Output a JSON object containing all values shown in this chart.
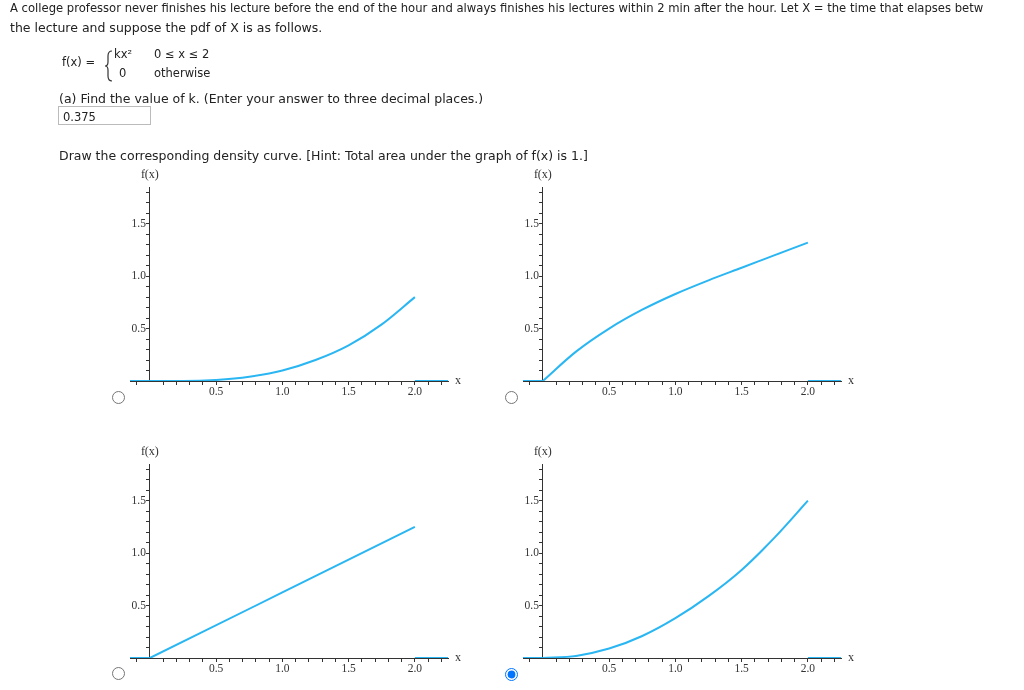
{
  "chart_data": [
    {
      "type": "other",
      "annotations": [
        "A college professor never finishes his lecture before the end of the hour and always finishes his lectures within 2 min after the hour. Let X = the time that elapses betw",
        "the lecture and suppose the pdf of X is as follows.",
        "f(x) =",
        "kx²",
        "0 ≤ x ≤ 2",
        "0",
        "otherwise",
        "(a) Find the value of k. (Enter your answer to three decimal places.)",
        "0.375",
        "Draw the corresponding density curve. [Hint: Total area under the graph of f(x) is 1.]"
      ]
    },
    {
      "type": "line",
      "xlabel": "x",
      "ylabel": "f(x)",
      "marker": "none",
      "xlim": [
        -0.15,
        2.25
      ],
      "ylim": [
        0,
        1.85
      ],
      "xticks": [
        {
          "value": -0.1,
          "label": null
        },
        {
          "value": 0.1,
          "label": null
        },
        {
          "value": 0.2,
          "label": null
        },
        {
          "value": 0.3,
          "label": null
        },
        {
          "value": 0.4,
          "label": null
        },
        {
          "value": 0.5,
          "label": "0.5"
        },
        {
          "value": 0.6,
          "label": null
        },
        {
          "value": 0.7,
          "label": null
        },
        {
          "value": 0.8,
          "label": null
        },
        {
          "value": 0.9,
          "label": null
        },
        {
          "value": 1,
          "label": "1.0"
        },
        {
          "value": 1.1,
          "label": null
        },
        {
          "value": 1.2,
          "label": null
        },
        {
          "value": 1.3,
          "label": null
        },
        {
          "value": 1.4,
          "label": null
        },
        {
          "value": 1.5,
          "label": "1.5"
        },
        {
          "value": 1.6,
          "label": null
        },
        {
          "value": 1.7,
          "label": null
        },
        {
          "value": 1.8,
          "label": null
        },
        {
          "value": 1.9,
          "label": null
        },
        {
          "value": 2,
          "label": "2.0"
        },
        {
          "value": 2.1,
          "label": null
        },
        {
          "value": 2.2,
          "label": null
        }
      ],
      "yticks": [
        {
          "value": 0.1,
          "label": null
        },
        {
          "value": 0.2,
          "label": null
        },
        {
          "value": 0.3,
          "label": null
        },
        {
          "value": 0.4,
          "label": null
        },
        {
          "value": 0.5,
          "label": "0.5"
        },
        {
          "value": 0.6,
          "label": null
        },
        {
          "value": 0.7,
          "label": null
        },
        {
          "value": 0.8,
          "label": null
        },
        {
          "value": 0.9,
          "label": null
        },
        {
          "value": 1,
          "label": "1.0"
        },
        {
          "value": 1.1,
          "label": null
        },
        {
          "value": 1.2,
          "label": null
        },
        {
          "value": 1.3,
          "label": null
        },
        {
          "value": 1.4,
          "label": null
        },
        {
          "value": 1.5,
          "label": "1.5"
        },
        {
          "value": 1.6,
          "label": null
        },
        {
          "value": 1.7,
          "label": null
        },
        {
          "value": 1.8,
          "label": null
        }
      ],
      "series": [
        {
          "color": "#29b6f2",
          "x": [
            0,
            0.25,
            0.5,
            0.75,
            1,
            1.25,
            1.5,
            1.75,
            2
          ],
          "values": [
            0,
            0,
            0.01,
            0.04,
            0.1,
            0.2,
            0.34,
            0.54,
            0.8
          ]
        },
        {
          "color": "#29b6f2",
          "x": [
            -0.15,
            0
          ],
          "values": [
            0,
            0
          ]
        },
        {
          "color": "#29b6f2",
          "x": [
            2,
            2.25
          ],
          "values": [
            0,
            0
          ]
        }
      ]
    },
    {
      "type": "line",
      "xlabel": "x",
      "ylabel": "f(x)",
      "marker": "none",
      "xlim": [
        -0.15,
        2.25
      ],
      "ylim": [
        0,
        1.85
      ],
      "xticks": [
        {
          "value": -0.1,
          "label": null
        },
        {
          "value": 0.1,
          "label": null
        },
        {
          "value": 0.2,
          "label": null
        },
        {
          "value": 0.3,
          "label": null
        },
        {
          "value": 0.4,
          "label": null
        },
        {
          "value": 0.5,
          "label": "0.5"
        },
        {
          "value": 0.6,
          "label": null
        },
        {
          "value": 0.7,
          "label": null
        },
        {
          "value": 0.8,
          "label": null
        },
        {
          "value": 0.9,
          "label": null
        },
        {
          "value": 1,
          "label": "1.0"
        },
        {
          "value": 1.1,
          "label": null
        },
        {
          "value": 1.2,
          "label": null
        },
        {
          "value": 1.3,
          "label": null
        },
        {
          "value": 1.4,
          "label": null
        },
        {
          "value": 1.5,
          "label": "1.5"
        },
        {
          "value": 1.6,
          "label": null
        },
        {
          "value": 1.7,
          "label": null
        },
        {
          "value": 1.8,
          "label": null
        },
        {
          "value": 1.9,
          "label": null
        },
        {
          "value": 2,
          "label": "2.0"
        },
        {
          "value": 2.1,
          "label": null
        },
        {
          "value": 2.2,
          "label": null
        }
      ],
      "yticks": [
        {
          "value": 0.1,
          "label": null
        },
        {
          "value": 0.2,
          "label": null
        },
        {
          "value": 0.3,
          "label": null
        },
        {
          "value": 0.4,
          "label": null
        },
        {
          "value": 0.5,
          "label": "0.5"
        },
        {
          "value": 0.6,
          "label": null
        },
        {
          "value": 0.7,
          "label": null
        },
        {
          "value": 0.8,
          "label": null
        },
        {
          "value": 0.9,
          "label": null
        },
        {
          "value": 1,
          "label": "1.0"
        },
        {
          "value": 1.1,
          "label": null
        },
        {
          "value": 1.2,
          "label": null
        },
        {
          "value": 1.3,
          "label": null
        },
        {
          "value": 1.4,
          "label": null
        },
        {
          "value": 1.5,
          "label": "1.5"
        },
        {
          "value": 1.6,
          "label": null
        },
        {
          "value": 1.7,
          "label": null
        },
        {
          "value": 1.8,
          "label": null
        }
      ],
      "series": [
        {
          "color": "#29b6f2",
          "x": [
            0,
            0.25,
            0.5,
            0.75,
            1,
            1.25,
            1.5,
            1.75,
            2
          ],
          "values": [
            0,
            0.28,
            0.5,
            0.68,
            0.83,
            0.96,
            1.08,
            1.2,
            1.32
          ]
        },
        {
          "color": "#29b6f2",
          "x": [
            -0.15,
            0
          ],
          "values": [
            0,
            0
          ]
        },
        {
          "color": "#29b6f2",
          "x": [
            2,
            2.25
          ],
          "values": [
            0,
            0
          ]
        }
      ]
    },
    {
      "type": "line",
      "xlabel": "x",
      "ylabel": "f(x)",
      "marker": "none",
      "xlim": [
        -0.15,
        2.25
      ],
      "ylim": [
        0,
        1.85
      ],
      "xticks": [
        {
          "value": -0.1,
          "label": null
        },
        {
          "value": 0.1,
          "label": null
        },
        {
          "value": 0.2,
          "label": null
        },
        {
          "value": 0.3,
          "label": null
        },
        {
          "value": 0.4,
          "label": null
        },
        {
          "value": 0.5,
          "label": "0.5"
        },
        {
          "value": 0.6,
          "label": null
        },
        {
          "value": 0.7,
          "label": null
        },
        {
          "value": 0.8,
          "label": null
        },
        {
          "value": 0.9,
          "label": null
        },
        {
          "value": 1,
          "label": "1.0"
        },
        {
          "value": 1.1,
          "label": null
        },
        {
          "value": 1.2,
          "label": null
        },
        {
          "value": 1.3,
          "label": null
        },
        {
          "value": 1.4,
          "label": null
        },
        {
          "value": 1.5,
          "label": "1.5"
        },
        {
          "value": 1.6,
          "label": null
        },
        {
          "value": 1.7,
          "label": null
        },
        {
          "value": 1.8,
          "label": null
        },
        {
          "value": 1.9,
          "label": null
        },
        {
          "value": 2,
          "label": "2.0"
        },
        {
          "value": 2.1,
          "label": null
        },
        {
          "value": 2.2,
          "label": null
        }
      ],
      "yticks": [
        {
          "value": 0.1,
          "label": null
        },
        {
          "value": 0.2,
          "label": null
        },
        {
          "value": 0.3,
          "label": null
        },
        {
          "value": 0.4,
          "label": null
        },
        {
          "value": 0.5,
          "label": "0.5"
        },
        {
          "value": 0.6,
          "label": null
        },
        {
          "value": 0.7,
          "label": null
        },
        {
          "value": 0.8,
          "label": null
        },
        {
          "value": 0.9,
          "label": null
        },
        {
          "value": 1,
          "label": "1.0"
        },
        {
          "value": 1.1,
          "label": null
        },
        {
          "value": 1.2,
          "label": null
        },
        {
          "value": 1.3,
          "label": null
        },
        {
          "value": 1.4,
          "label": null
        },
        {
          "value": 1.5,
          "label": "1.5"
        },
        {
          "value": 1.6,
          "label": null
        },
        {
          "value": 1.7,
          "label": null
        },
        {
          "value": 1.8,
          "label": null
        }
      ],
      "series": [
        {
          "color": "#29b6f2",
          "x": [
            0,
            2
          ],
          "values": [
            0,
            1.25
          ]
        },
        {
          "color": "#29b6f2",
          "x": [
            -0.15,
            0
          ],
          "values": [
            0,
            0
          ]
        },
        {
          "color": "#29b6f2",
          "x": [
            2,
            2.25
          ],
          "values": [
            0,
            0
          ]
        }
      ]
    },
    {
      "type": "line",
      "xlabel": "x",
      "ylabel": "f(x)",
      "marker": "none",
      "xlim": [
        -0.15,
        2.25
      ],
      "ylim": [
        0,
        1.85
      ],
      "xticks": [
        {
          "value": -0.1,
          "label": null
        },
        {
          "value": 0.1,
          "label": null
        },
        {
          "value": 0.2,
          "label": null
        },
        {
          "value": 0.3,
          "label": null
        },
        {
          "value": 0.4,
          "label": null
        },
        {
          "value": 0.5,
          "label": "0.5"
        },
        {
          "value": 0.6,
          "label": null
        },
        {
          "value": 0.7,
          "label": null
        },
        {
          "value": 0.8,
          "label": null
        },
        {
          "value": 0.9,
          "label": null
        },
        {
          "value": 1,
          "label": "1.0"
        },
        {
          "value": 1.1,
          "label": null
        },
        {
          "value": 1.2,
          "label": null
        },
        {
          "value": 1.3,
          "label": null
        },
        {
          "value": 1.4,
          "label": null
        },
        {
          "value": 1.5,
          "label": "1.5"
        },
        {
          "value": 1.6,
          "label": null
        },
        {
          "value": 1.7,
          "label": null
        },
        {
          "value": 1.8,
          "label": null
        },
        {
          "value": 1.9,
          "label": null
        },
        {
          "value": 2,
          "label": "2.0"
        },
        {
          "value": 2.1,
          "label": null
        },
        {
          "value": 2.2,
          "label": null
        }
      ],
      "yticks": [
        {
          "value": 0.1,
          "label": null
        },
        {
          "value": 0.2,
          "label": null
        },
        {
          "value": 0.3,
          "label": null
        },
        {
          "value": 0.4,
          "label": null
        },
        {
          "value": 0.5,
          "label": "0.5"
        },
        {
          "value": 0.6,
          "label": null
        },
        {
          "value": 0.7,
          "label": null
        },
        {
          "value": 0.8,
          "label": null
        },
        {
          "value": 0.9,
          "label": null
        },
        {
          "value": 1,
          "label": "1.0"
        },
        {
          "value": 1.1,
          "label": null
        },
        {
          "value": 1.2,
          "label": null
        },
        {
          "value": 1.3,
          "label": null
        },
        {
          "value": 1.4,
          "label": null
        },
        {
          "value": 1.5,
          "label": "1.5"
        },
        {
          "value": 1.6,
          "label": null
        },
        {
          "value": 1.7,
          "label": null
        },
        {
          "value": 1.8,
          "label": null
        }
      ],
      "series": [
        {
          "color": "#29b6f2",
          "x": [
            0,
            0.25,
            0.5,
            0.75,
            1,
            1.25,
            1.5,
            1.75,
            2
          ],
          "values": [
            0,
            0.02,
            0.09,
            0.21,
            0.38,
            0.59,
            0.84,
            1.15,
            1.5
          ]
        },
        {
          "color": "#29b6f2",
          "x": [
            -0.15,
            0
          ],
          "values": [
            0,
            0
          ]
        },
        {
          "color": "#29b6f2",
          "x": [
            2,
            2.25
          ],
          "values": [
            0,
            0
          ]
        }
      ]
    }
  ]
}
